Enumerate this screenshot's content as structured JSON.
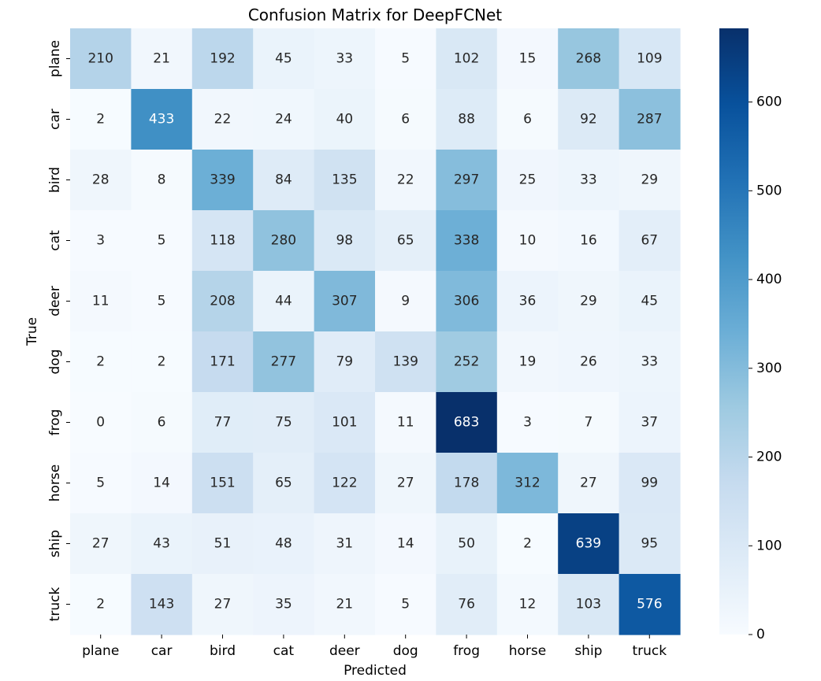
{
  "chart_data": {
    "type": "heatmap",
    "title": "Confusion Matrix for DeepFCNet",
    "xlabel": "Predicted",
    "ylabel": "True",
    "x_categories": [
      "plane",
      "car",
      "bird",
      "cat",
      "deer",
      "dog",
      "frog",
      "horse",
      "ship",
      "truck"
    ],
    "y_categories": [
      "plane",
      "car",
      "bird",
      "cat",
      "deer",
      "dog",
      "frog",
      "horse",
      "ship",
      "truck"
    ],
    "values": [
      [
        210,
        21,
        192,
        45,
        33,
        5,
        102,
        15,
        268,
        109
      ],
      [
        2,
        433,
        22,
        24,
        40,
        6,
        88,
        6,
        92,
        287
      ],
      [
        28,
        8,
        339,
        84,
        135,
        22,
        297,
        25,
        33,
        29
      ],
      [
        3,
        5,
        118,
        280,
        98,
        65,
        338,
        10,
        16,
        67
      ],
      [
        11,
        5,
        208,
        44,
        307,
        9,
        306,
        36,
        29,
        45
      ],
      [
        2,
        2,
        171,
        277,
        79,
        139,
        252,
        19,
        26,
        33
      ],
      [
        0,
        6,
        77,
        75,
        101,
        11,
        683,
        3,
        7,
        37
      ],
      [
        5,
        14,
        151,
        65,
        122,
        27,
        178,
        312,
        27,
        99
      ],
      [
        27,
        43,
        51,
        48,
        31,
        14,
        50,
        2,
        639,
        95
      ],
      [
        2,
        143,
        27,
        35,
        21,
        5,
        76,
        12,
        103,
        576
      ]
    ],
    "colorbar": {
      "min": 0,
      "max": 683,
      "ticks": [
        "0",
        "100",
        "200",
        "300",
        "400",
        "500",
        "600"
      ],
      "colormap": "Blues",
      "colors": [
        "#f7fbff",
        "#deebf7",
        "#c6dbef",
        "#9ecae1",
        "#6baed6",
        "#4292c6",
        "#2171b5",
        "#08519c",
        "#08306b"
      ]
    },
    "annotation_colors": {
      "dark_cell": "#ffffff",
      "light_cell": "#262626"
    },
    "grid": false
  }
}
